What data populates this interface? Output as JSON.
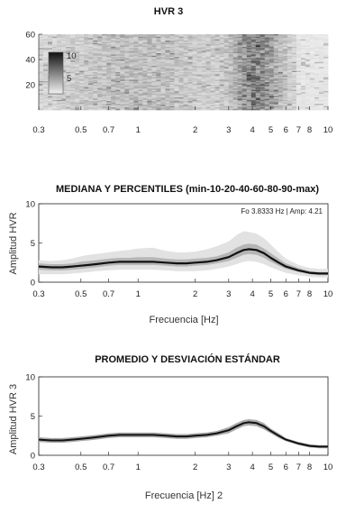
{
  "chart_data": [
    {
      "type": "heatmap",
      "title": "HVR 3",
      "x_scale": "log",
      "xlim": [
        0.3,
        10
      ],
      "x_ticks": [
        "0.3",
        "0.5",
        "0.7",
        "1",
        "2",
        "3",
        "4",
        "5",
        "6",
        "7",
        "8",
        "10"
      ],
      "ylim": [
        0,
        60
      ],
      "y_ticks": [
        "20",
        "40",
        "60"
      ],
      "colorbar": {
        "ticks": [
          "5",
          "10"
        ],
        "range": [
          0,
          10
        ]
      },
      "windows": 60,
      "grid": false
    },
    {
      "type": "line",
      "title": "MEDIANA Y PERCENTILES (min-10-20-40-60-80-90-max)",
      "xlabel": "Frecuencia [Hz]",
      "ylabel": "Amplitud HVR",
      "x_scale": "log",
      "xlim": [
        0.3,
        10
      ],
      "ylim": [
        0,
        10
      ],
      "x_ticks": [
        "0.3",
        "0.5",
        "0.7",
        "1",
        "2",
        "3",
        "4",
        "5",
        "6",
        "7",
        "8",
        "10"
      ],
      "y_ticks": [
        "0",
        "5",
        "10"
      ],
      "annotation": "Fo 3.8333 Hz | Amp: 4.21",
      "x": [
        0.3,
        0.35,
        0.4,
        0.45,
        0.5,
        0.55,
        0.6,
        0.7,
        0.8,
        0.9,
        1.0,
        1.2,
        1.4,
        1.6,
        1.8,
        2.0,
        2.3,
        2.6,
        3.0,
        3.3,
        3.6,
        3.83,
        4.2,
        4.6,
        5.0,
        5.5,
        6.0,
        7.0,
        8.0,
        9.0,
        10.0
      ],
      "series": [
        {
          "values": [
            2.0,
            1.9,
            1.9,
            2.0,
            2.1,
            2.2,
            2.3,
            2.5,
            2.6,
            2.6,
            2.6,
            2.6,
            2.5,
            2.4,
            2.4,
            2.5,
            2.6,
            2.8,
            3.2,
            3.7,
            4.1,
            4.21,
            4.1,
            3.7,
            3.1,
            2.5,
            2.0,
            1.5,
            1.2,
            1.1,
            1.1
          ]
        }
      ],
      "bands": [
        {
          "lower": [
            1.0,
            1.0,
            1.0,
            1.1,
            1.2,
            1.3,
            1.4,
            1.5,
            1.6,
            1.6,
            1.6,
            1.6,
            1.5,
            1.4,
            1.4,
            1.4,
            1.5,
            1.7,
            2.0,
            2.3,
            2.6,
            2.7,
            2.6,
            2.3,
            1.9,
            1.5,
            1.2,
            0.9,
            0.7,
            0.6,
            0.6
          ],
          "upper": [
            2.8,
            2.7,
            2.8,
            3.0,
            3.3,
            3.5,
            3.6,
            3.8,
            4.0,
            4.1,
            4.3,
            4.4,
            4.0,
            3.8,
            3.8,
            3.9,
            4.2,
            4.6,
            5.2,
            6.0,
            6.5,
            6.4,
            6.2,
            5.6,
            4.8,
            3.8,
            3.0,
            2.2,
            1.8,
            1.7,
            1.7
          ]
        },
        {
          "lower": [
            1.6,
            1.5,
            1.5,
            1.6,
            1.7,
            1.8,
            1.9,
            2.1,
            2.2,
            2.2,
            2.2,
            2.2,
            2.1,
            2.0,
            2.0,
            2.1,
            2.2,
            2.4,
            2.7,
            3.1,
            3.5,
            3.6,
            3.5,
            3.1,
            2.6,
            2.1,
            1.7,
            1.3,
            1.0,
            0.9,
            0.9
          ],
          "upper": [
            2.4,
            2.3,
            2.3,
            2.4,
            2.6,
            2.7,
            2.8,
            3.0,
            3.1,
            3.1,
            3.2,
            3.2,
            3.0,
            2.9,
            2.9,
            3.0,
            3.1,
            3.3,
            3.8,
            4.4,
            4.8,
            4.9,
            4.8,
            4.3,
            3.7,
            3.0,
            2.4,
            1.8,
            1.4,
            1.3,
            1.3
          ]
        }
      ]
    },
    {
      "type": "line",
      "title": "PROMEDIO Y DESVIACIÓN ESTÁNDAR",
      "xlabel": "Frecuencia [Hz] 2",
      "ylabel": "Amplitud HVR 3",
      "x_scale": "log",
      "xlim": [
        0.3,
        10
      ],
      "ylim": [
        0,
        10
      ],
      "x_ticks": [
        "0.3",
        "0.5",
        "0.7",
        "1",
        "2",
        "3",
        "4",
        "5",
        "6",
        "7",
        "8",
        "10"
      ],
      "y_ticks": [
        "0",
        "5",
        "10"
      ],
      "x": [
        0.3,
        0.35,
        0.4,
        0.45,
        0.5,
        0.55,
        0.6,
        0.7,
        0.8,
        0.9,
        1.0,
        1.2,
        1.4,
        1.6,
        1.8,
        2.0,
        2.3,
        2.6,
        3.0,
        3.3,
        3.6,
        3.83,
        4.2,
        4.6,
        5.0,
        5.5,
        6.0,
        7.0,
        8.0,
        9.0,
        10.0
      ],
      "series": [
        {
          "values": [
            2.0,
            1.9,
            1.9,
            2.0,
            2.1,
            2.2,
            2.3,
            2.5,
            2.6,
            2.6,
            2.6,
            2.6,
            2.5,
            2.4,
            2.4,
            2.5,
            2.6,
            2.8,
            3.2,
            3.7,
            4.1,
            4.21,
            4.1,
            3.7,
            3.1,
            2.5,
            2.0,
            1.5,
            1.2,
            1.1,
            1.1
          ]
        }
      ],
      "bands": [
        {
          "lower": [
            1.7,
            1.6,
            1.6,
            1.7,
            1.8,
            1.9,
            2.0,
            2.2,
            2.3,
            2.3,
            2.3,
            2.3,
            2.2,
            2.1,
            2.1,
            2.2,
            2.3,
            2.5,
            2.8,
            3.3,
            3.7,
            3.8,
            3.7,
            3.3,
            2.8,
            2.2,
            1.8,
            1.3,
            1.0,
            0.9,
            0.9
          ],
          "upper": [
            2.3,
            2.2,
            2.2,
            2.3,
            2.4,
            2.5,
            2.6,
            2.8,
            2.9,
            2.9,
            2.9,
            2.9,
            2.8,
            2.7,
            2.7,
            2.8,
            2.9,
            3.1,
            3.6,
            4.1,
            4.5,
            4.6,
            4.5,
            4.1,
            3.4,
            2.8,
            2.2,
            1.7,
            1.4,
            1.3,
            1.3
          ]
        }
      ]
    }
  ]
}
